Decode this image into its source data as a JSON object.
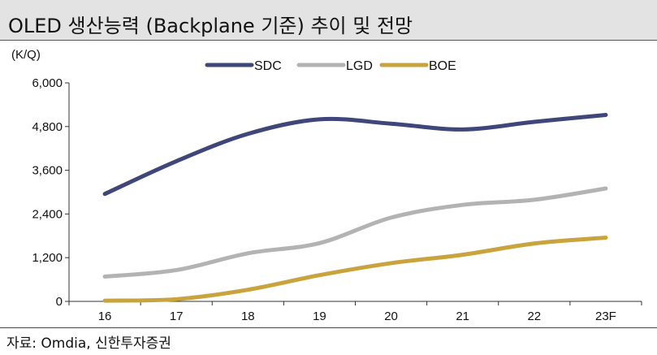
{
  "title": "OLED 생산능력 (Backplane 기준) 추이 및 전망",
  "source": "자료: Omdia, 신한투자증권",
  "chart_data": {
    "type": "line",
    "unit_label": "(K/Q)",
    "categories": [
      "16",
      "17",
      "18",
      "19",
      "20",
      "21",
      "22",
      "23F"
    ],
    "y_ticks": [
      "0",
      "1,200",
      "2,400",
      "3,600",
      "4,800",
      "6,000"
    ],
    "ylim": [
      0,
      6000
    ],
    "grid": false,
    "legend_position": "top-center",
    "series": [
      {
        "name": "SDC",
        "color": "#3f4679",
        "values": [
          2950,
          3850,
          4600,
          5000,
          4880,
          4720,
          4930,
          5120
        ]
      },
      {
        "name": "LGD",
        "color": "#b3b3b3",
        "values": [
          680,
          860,
          1320,
          1600,
          2300,
          2650,
          2790,
          3100
        ]
      },
      {
        "name": "BOE",
        "color": "#c9a33c",
        "values": [
          20,
          60,
          320,
          720,
          1050,
          1280,
          1590,
          1750
        ]
      }
    ]
  }
}
